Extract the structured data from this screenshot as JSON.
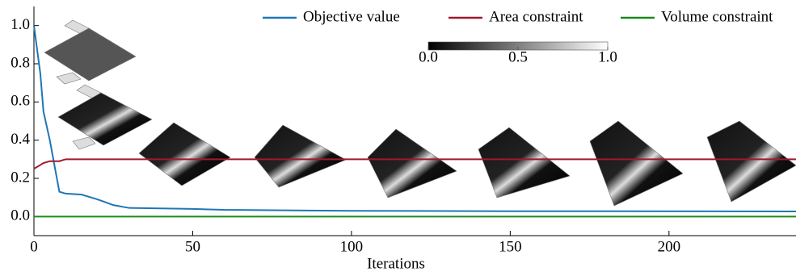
{
  "chart_data": {
    "type": "line",
    "x_label": "Iterations",
    "x": [
      0,
      2,
      3,
      5,
      7,
      8,
      10,
      15,
      20,
      25,
      30,
      50,
      60,
      100,
      150,
      240
    ],
    "series": [
      {
        "name": "Objective value",
        "color": "#1f77b4",
        "values": [
          1.0,
          0.75,
          0.55,
          0.4,
          0.22,
          0.13,
          0.12,
          0.115,
          0.09,
          0.06,
          0.045,
          0.04,
          0.035,
          0.03,
          0.028,
          0.027
        ]
      },
      {
        "name": "Area constraint",
        "color": "#a0192e",
        "values": [
          0.25,
          0.27,
          0.28,
          0.29,
          0.29,
          0.29,
          0.3,
          0.3,
          0.3,
          0.3,
          0.3,
          0.3,
          0.3,
          0.3,
          0.3,
          0.3
        ]
      },
      {
        "name": "Volume constraint",
        "color": "#1a8a1a",
        "values": [
          0,
          0,
          0,
          0,
          0,
          0,
          0,
          0,
          0,
          0,
          0,
          0,
          0,
          0,
          0,
          0
        ]
      }
    ],
    "xlim": [
      0,
      240
    ],
    "xticks": [
      0,
      50,
      100,
      150,
      200
    ],
    "ylim": [
      -0.1,
      1.1
    ],
    "yticks": [
      {
        "value": 0,
        "label": "0.0"
      },
      {
        "value": 0.2,
        "label": "0.2"
      },
      {
        "value": 0.4,
        "label": "0.4"
      },
      {
        "value": 0.6,
        "label": "0.6"
      },
      {
        "value": 0.8,
        "label": "0.8"
      },
      {
        "value": 1,
        "label": "1.0"
      }
    ],
    "colorbar": {
      "lim": [
        0,
        1
      ],
      "ticks": [
        {
          "value": 0,
          "label": "0.0"
        },
        {
          "value": 0.5,
          "label": "0.5"
        },
        {
          "value": 1,
          "label": "1.0"
        }
      ]
    }
  }
}
